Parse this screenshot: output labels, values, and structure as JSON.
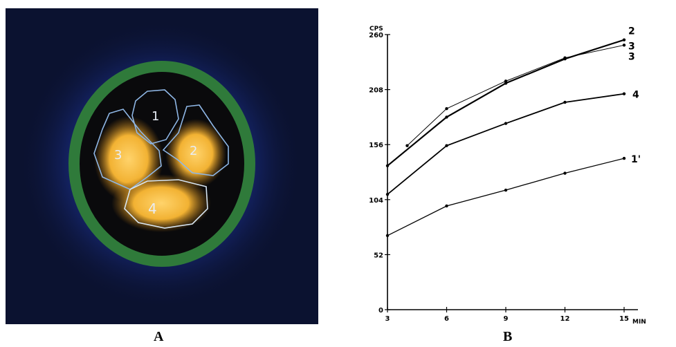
{
  "panel_labels": {
    "a": "A",
    "b": "B"
  },
  "scan": {
    "regions": [
      {
        "id": "1",
        "label": "1"
      },
      {
        "id": "2",
        "label": "2"
      },
      {
        "id": "3",
        "label": "3"
      },
      {
        "id": "4",
        "label": "4"
      }
    ],
    "colors": {
      "background": "#0b1230",
      "halo": "#1a2f8a",
      "ring": "#2f7a3a",
      "hot": "#f2b233",
      "outline": "#8fb7e6",
      "label": "#e8edf5"
    }
  },
  "chart_data": {
    "type": "line",
    "ylabel": "CPS",
    "xlabel": "MIN",
    "xlim": [
      3,
      15
    ],
    "ylim": [
      0,
      260
    ],
    "x_ticks": [
      3,
      6,
      9,
      12,
      15
    ],
    "y_ticks": [
      0,
      52,
      104,
      156,
      208,
      260
    ],
    "series": [
      {
        "name": "2",
        "x": [
          3,
          6,
          9,
          12,
          15
        ],
        "values": [
          136,
          182,
          214,
          237,
          255
        ],
        "stroke": 2.2,
        "dash": false
      },
      {
        "name": "3",
        "x": [
          4,
          6,
          9,
          12,
          15
        ],
        "values": [
          155,
          190,
          216,
          238,
          250
        ],
        "stroke": 1.0,
        "dash": false
      },
      {
        "name": "4",
        "x": [
          3,
          6,
          9,
          12,
          15
        ],
        "values": [
          109,
          155,
          176,
          196,
          204
        ],
        "stroke": 1.8,
        "dash": false
      },
      {
        "name": "1",
        "x": [
          3,
          6,
          9,
          12,
          15
        ],
        "values": [
          70,
          98,
          113,
          129,
          143
        ],
        "stroke": 1.3,
        "dash": false
      }
    ],
    "series_labels": [
      {
        "series": "2",
        "text": "2"
      },
      {
        "series": "3",
        "text": "3"
      },
      {
        "series": "3",
        "text": "3"
      },
      {
        "series": "4",
        "text": "4"
      },
      {
        "series": "1",
        "text": "1'"
      }
    ],
    "grid": false,
    "legend": "none"
  }
}
